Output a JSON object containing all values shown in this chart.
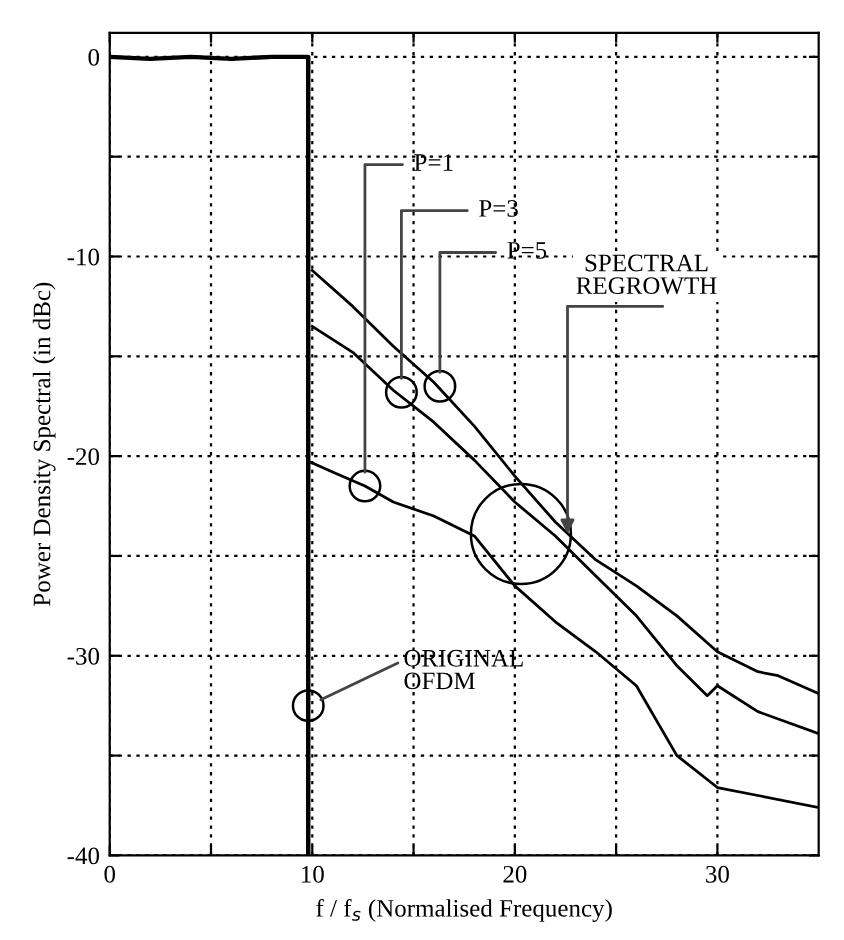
{
  "chart_data": {
    "type": "line",
    "xlabel": "f / f$_{s}$ (Normalised Frequency)",
    "ylabel": "Power Density Spectral (in dBc)",
    "xlim": [
      0,
      35
    ],
    "ylim": [
      -40,
      1.2
    ],
    "xticks": [
      0,
      {
        "value": 5,
        "label": null
      },
      10,
      {
        "value": 15,
        "label": null
      },
      20,
      {
        "value": 25,
        "label": null
      },
      30
    ],
    "yticks": [
      -40,
      {
        "value": -35,
        "label": null
      },
      -30,
      {
        "value": -25,
        "label": null
      },
      -20,
      {
        "value": -15,
        "label": null
      },
      -10,
      {
        "value": -5,
        "label": null
      },
      0
    ],
    "grid": true,
    "legend": false,
    "marker": "none",
    "line_style": "solid",
    "series": [
      {
        "color": "#000000",
        "x": [
          0,
          2,
          4,
          6,
          8,
          9.8,
          9.8
        ],
        "values": [
          0,
          -0.1,
          0,
          -0.1,
          0,
          0,
          -40
        ]
      },
      {
        "color": "#000000",
        "x": [
          9.9,
          11,
          12.6,
          14,
          16,
          18,
          20,
          22,
          24,
          26,
          28,
          30,
          32,
          35
        ],
        "values": [
          -20.3,
          -20.8,
          -21.5,
          -22.3,
          -23,
          -24,
          -26.5,
          -28.3,
          -29.8,
          -31.5,
          -35,
          -36.6,
          -37,
          -37.6
        ]
      },
      {
        "color": "#000000",
        "x": [
          10,
          12,
          14,
          16,
          18,
          20,
          22,
          24,
          26,
          28,
          29.5,
          30,
          32,
          35
        ],
        "values": [
          -13.5,
          -14.8,
          -16.7,
          -18.3,
          -20.2,
          -22.3,
          -24,
          -26,
          -28,
          -30.5,
          -32,
          -31.5,
          -32.8,
          -33.9
        ]
      },
      {
        "color": "#000000",
        "x": [
          10,
          12,
          14,
          16,
          18,
          20,
          22,
          24,
          26,
          28,
          30,
          32,
          33,
          35
        ],
        "values": [
          -10.7,
          -12.5,
          -14.5,
          -16.3,
          -18.5,
          -21,
          -23.3,
          -25.2,
          -26.5,
          -28,
          -29.8,
          -30.8,
          -31,
          -31.9
        ]
      }
    ],
    "annotations": [
      {
        "text": "P=1",
        "x": 12.6,
        "y": -21.5
      },
      {
        "text": "P=3",
        "x": 14.4,
        "y": -16.8
      },
      {
        "text": "P=5",
        "x": 16.3,
        "y": -16.5
      },
      {
        "text": "SPECTRAL\nREGROWTH",
        "x": 22.6,
        "y": -23.9
      },
      {
        "text": "ORIGINAL\nOFDM",
        "x": 9.8,
        "y": -32.5
      }
    ]
  }
}
